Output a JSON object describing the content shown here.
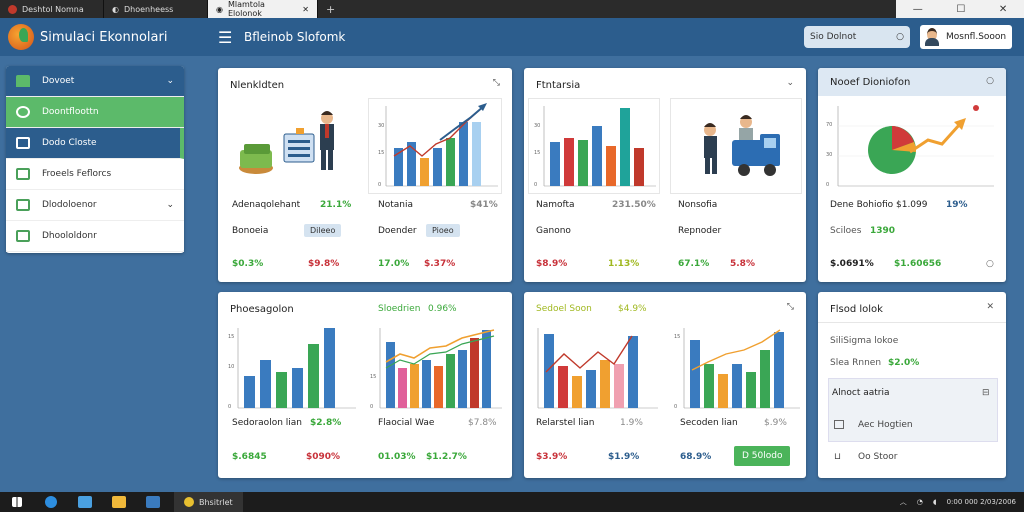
{
  "browser": {
    "tabs": [
      "Deshtol Nomna",
      "Dhoenheess",
      "Mlamtola Elolonok"
    ],
    "new_tab": "+",
    "controls": [
      "—",
      "☐",
      "✕"
    ]
  },
  "app": {
    "title": "Simulaci Ekonnolari",
    "page_title": "Bfleinob Slofomk",
    "search_placeholder": "Sio Dolnot",
    "user_name": "Mosnfl.Sooon"
  },
  "sidebar": {
    "items": [
      {
        "label": "Dovoet",
        "style": "head",
        "chevron": "⌄"
      },
      {
        "label": "Doontfloottn",
        "style": "green",
        "chevron": ""
      },
      {
        "label": "Dodo Closte",
        "style": "sel",
        "chevron": ""
      },
      {
        "label": "Froeels Feflorcs",
        "style": "plain",
        "chevron": ""
      },
      {
        "label": "Dlodoloenor",
        "style": "plain",
        "chevron": "⌄"
      },
      {
        "label": "Dhoololdonr",
        "style": "plain",
        "chevron": ""
      }
    ]
  },
  "cards": {
    "c1": {
      "title": "Nlenkldten",
      "close": "⤡",
      "row1_label": "Adenaqolehant",
      "row1_val": "21.1%",
      "row2_label": "Bonoeia",
      "row2_pill": "Dileeo",
      "foot_a": "$0.3%",
      "foot_b": "$9.8%",
      "side_row1_label": "Notania",
      "side_row1_val": "$41%",
      "side_row2_label": "Doender",
      "side_row2_pill": "Pioeo",
      "side_foot_a": "17.0%",
      "side_foot_b": "$.37%"
    },
    "c2": {
      "title": "Ftntarsia",
      "close": "⌄",
      "row1_label": "Namofta",
      "row1_val": "231.50%",
      "row2_label": "Ganono",
      "foot_a": "$8.9%",
      "foot_b": "1.13%",
      "side_row1_label": "Nonsofia",
      "side_row2_label": "Repnoder",
      "side_foot_a": "67.1%",
      "side_foot_b": "5.8%"
    },
    "c3": {
      "title": "Nooef Dioniofon",
      "close": "○",
      "row1_label": "Dene Bohiofio $1.099",
      "row1_val": "19%",
      "row2_label": "Sciloes",
      "row2_val": "1390",
      "foot_a": "$.0691%",
      "foot_b": "$1.60656",
      "foot_c": "○"
    },
    "c4": {
      "title": "Phoesagolon",
      "row_label": "Sedoraolon lian",
      "row_val": "$2.8%",
      "foot_a": "$.6845",
      "foot_b": "$090%",
      "side_title": "Sloedrien",
      "side_title_val": "0.96%",
      "side_row_label": "Flaocial Wae",
      "side_row_val": "$7.8%",
      "side_foot_a": "01.03%",
      "side_foot_b": "$1.2.7%"
    },
    "c5": {
      "title": "Sedoel Soon",
      "title_val": "$4.9%",
      "close": "⤡",
      "row_label": "Relarstel lian",
      "row_val": "1.9%",
      "foot_a": "$3.9%",
      "foot_b": "$1.9%",
      "side_row_label": "Secoden lian",
      "side_row_val": "$.9%",
      "side_foot_a": "68.9%",
      "button": "D 50lodo"
    },
    "c6": {
      "title": "Flsod lolok",
      "close": "✕",
      "line1": "SiliSigma lokoe",
      "line2_label": "Slea Rnnen",
      "line2_val": "$2.0%",
      "panel_title": "Alnoct aatria",
      "panel_icon": "⊟",
      "panel_item1": "Aec Hogtien",
      "panel_item2": "Oo Stoor"
    }
  },
  "taskbar": {
    "app_label": "Bhsitrlet",
    "clock": "0:00 000 2/03/2006"
  },
  "colors": {
    "topbar": "#2c5d8d",
    "accent_green": "#5cba6a",
    "positive": "#3aa83a",
    "negative": "#c8323a"
  },
  "icons": [
    "menu-icon",
    "search-icon",
    "user-avatar",
    "chevron-down-icon",
    "expand-icon",
    "close-icon",
    "windows-icon",
    "edge-icon",
    "folder-icon",
    "store-icon",
    "chrome-icon"
  ]
}
